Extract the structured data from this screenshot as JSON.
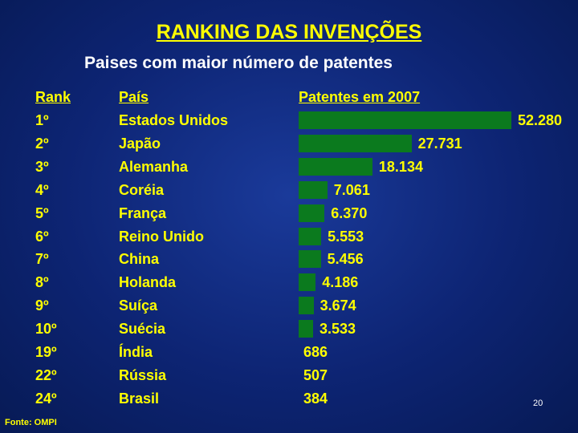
{
  "title": "RANKING DAS INVENÇÕES",
  "subtitle": "Paises com maior número de patentes",
  "source": "Fonte: OMPI",
  "slide_number": "20",
  "colors": {
    "background": "#0d2473",
    "text": "#ffff00",
    "bar": "#0b7a1e"
  },
  "chart_data": {
    "type": "bar",
    "orientation": "horizontal",
    "headers": {
      "rank": "Rank",
      "country": "País",
      "patents": "Patentes em 2007"
    },
    "rows": [
      {
        "rank": "1º",
        "country": "Estados Unidos",
        "value": 52280,
        "label": "52.280"
      },
      {
        "rank": "2º",
        "country": "Japão",
        "value": 27731,
        "label": "27.731"
      },
      {
        "rank": "3º",
        "country": "Alemanha",
        "value": 18134,
        "label": "18.134"
      },
      {
        "rank": "4º",
        "country": "Coréia",
        "value": 7061,
        "label": "7.061"
      },
      {
        "rank": "5º",
        "country": "França",
        "value": 6370,
        "label": "6.370"
      },
      {
        "rank": "6º",
        "country": "Reino Unido",
        "value": 5553,
        "label": "5.553"
      },
      {
        "rank": "7º",
        "country": "China",
        "value": 5456,
        "label": "5.456"
      },
      {
        "rank": "8º",
        "country": "Holanda",
        "value": 4186,
        "label": "4.186"
      },
      {
        "rank": "9º",
        "country": "Suíça",
        "value": 3674,
        "label": "3.674"
      },
      {
        "rank": "10º",
        "country": "Suécia",
        "value": 3533,
        "label": "3.533"
      },
      {
        "rank": "19º",
        "country": "Índia",
        "value": 686,
        "label": "686"
      },
      {
        "rank": "22º",
        "country": "Rússia",
        "value": 507,
        "label": "507"
      },
      {
        "rank": "24º",
        "country": "Brasil",
        "value": 384,
        "label": "384"
      }
    ],
    "bars_drawn_for_first": 10,
    "grid": false,
    "legend": false
  }
}
